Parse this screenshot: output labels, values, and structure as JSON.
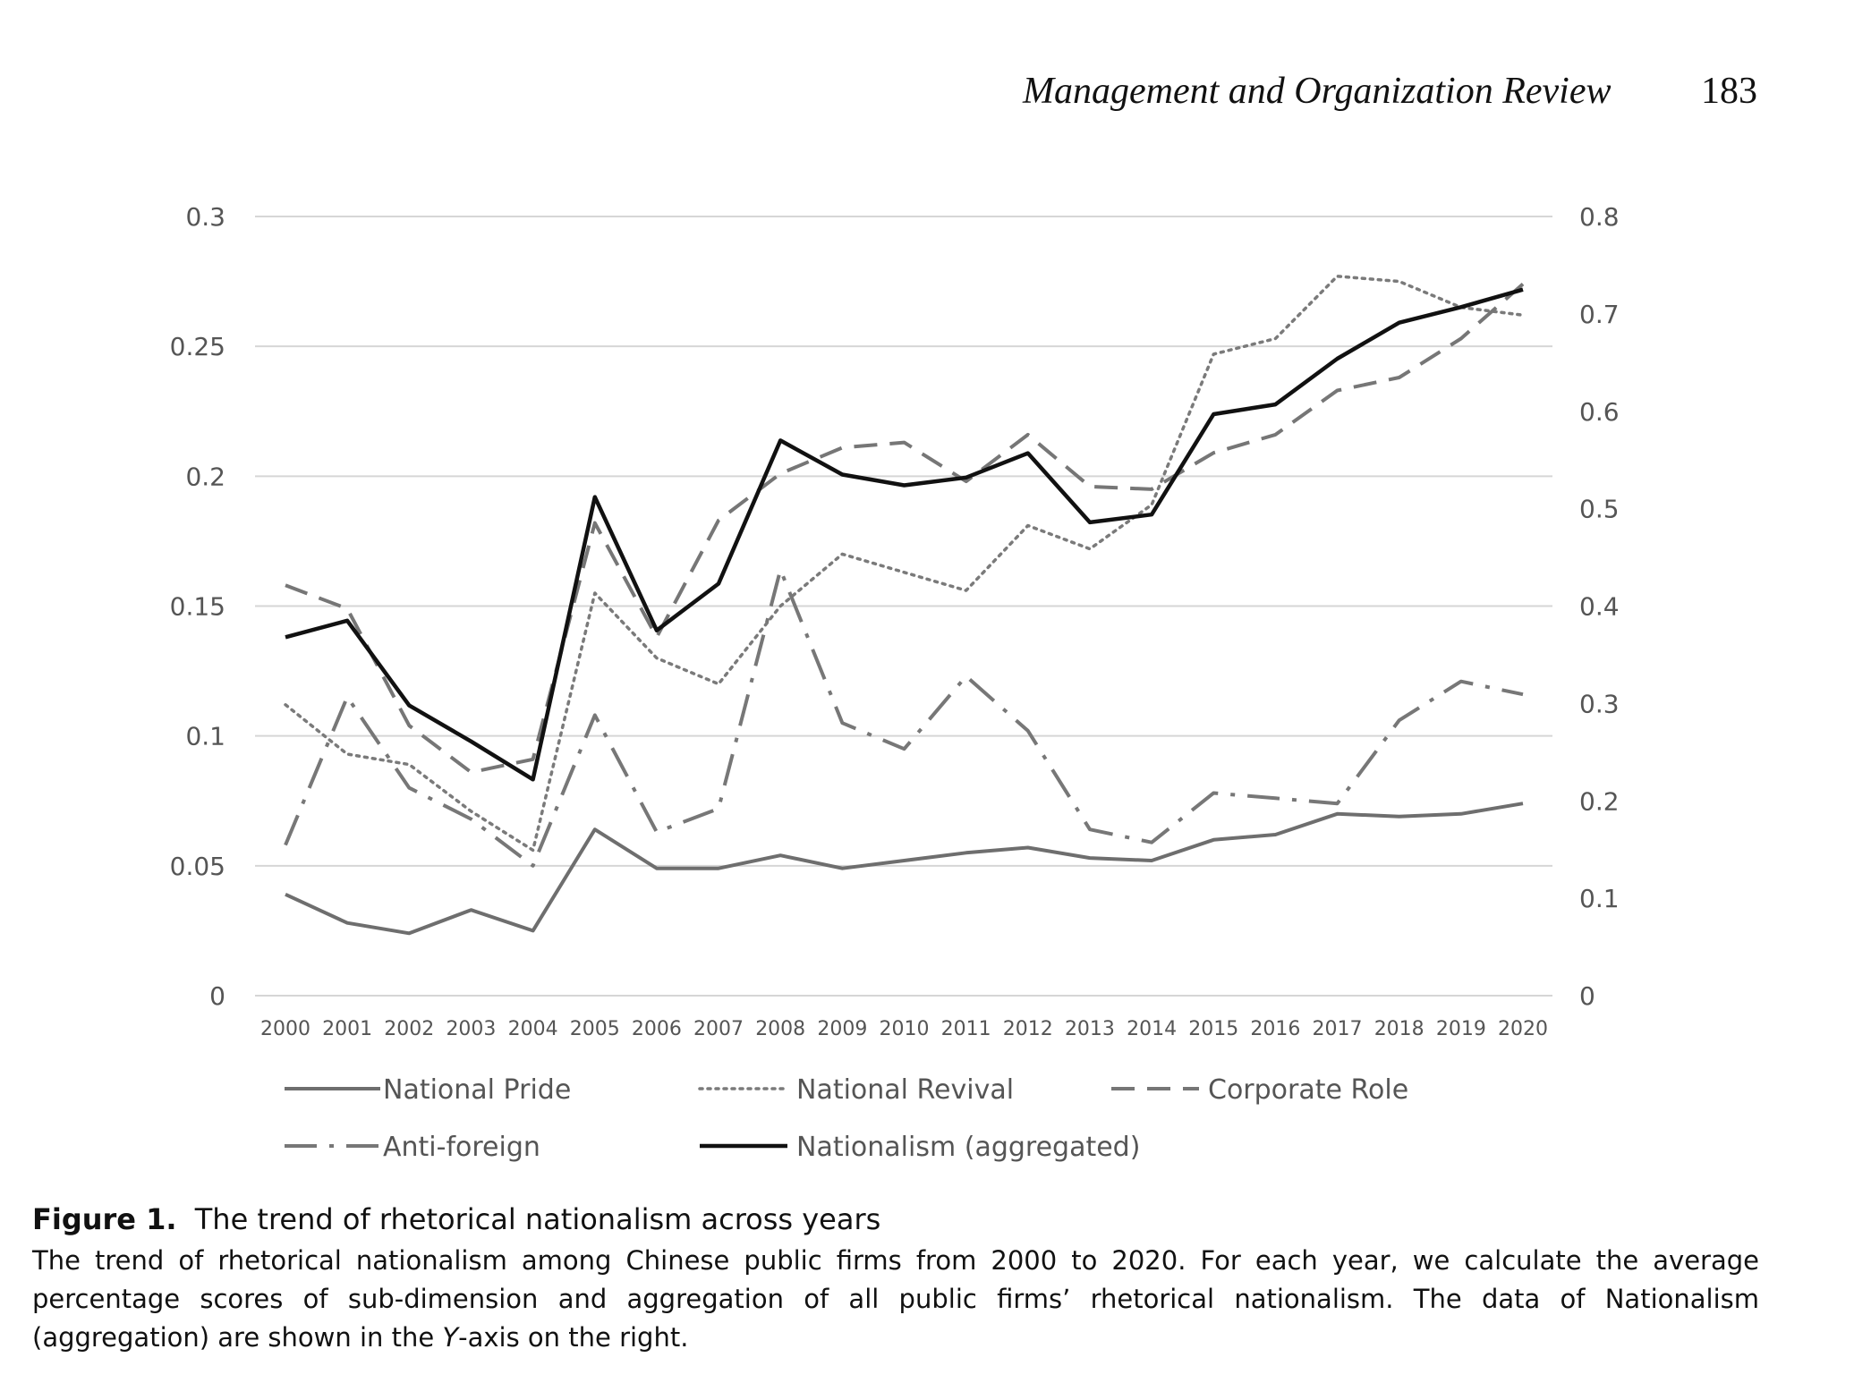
{
  "header": {
    "journal": "Management and Organization Review",
    "page_number": "183"
  },
  "chart_data": {
    "type": "line",
    "title": "",
    "xlabel": "",
    "ylabel": "",
    "x": [
      "2000",
      "2001",
      "2002",
      "2003",
      "2004",
      "2005",
      "2006",
      "2007",
      "2008",
      "2009",
      "2010",
      "2011",
      "2012",
      "2013",
      "2014",
      "2015",
      "2016",
      "2017",
      "2018",
      "2019",
      "2020"
    ],
    "y_left": {
      "lim": [
        0,
        0.3
      ],
      "ticks": [
        0,
        0.05,
        0.1,
        0.15,
        0.2,
        0.25,
        0.3
      ],
      "tick_labels": [
        "0",
        "0.05",
        "0.1",
        "0.15",
        "0.2",
        "0.25",
        "0.3"
      ]
    },
    "y_right": {
      "lim": [
        0,
        0.8
      ],
      "ticks": [
        0,
        0.1,
        0.2,
        0.3,
        0.4,
        0.5,
        0.6,
        0.7,
        0.8
      ],
      "tick_labels": [
        "0",
        "0.1",
        "0.2",
        "0.3",
        "0.4",
        "0.5",
        "0.6",
        "0.7",
        "0.8"
      ]
    },
    "grid": true,
    "legend_position": "bottom",
    "series": [
      {
        "name": "National Pride",
        "axis": "left",
        "style": "solid",
        "color": "#6e6e6e",
        "values": [
          0.039,
          0.028,
          0.024,
          0.033,
          0.025,
          0.064,
          0.049,
          0.049,
          0.054,
          0.049,
          0.052,
          0.055,
          0.057,
          0.053,
          0.052,
          0.06,
          0.062,
          0.07,
          0.069,
          0.07,
          0.074
        ]
      },
      {
        "name": "National Revival",
        "axis": "left",
        "style": "dotted",
        "color": "#7a7a7a",
        "values": [
          0.112,
          0.093,
          0.089,
          0.071,
          0.056,
          0.155,
          0.13,
          0.12,
          0.15,
          0.17,
          0.163,
          0.156,
          0.181,
          0.172,
          0.189,
          0.247,
          0.253,
          0.277,
          0.275,
          0.265,
          0.262
        ]
      },
      {
        "name": "Corporate Role",
        "axis": "left",
        "style": "dashed",
        "color": "#767676",
        "values": [
          0.158,
          0.149,
          0.104,
          0.086,
          0.091,
          0.182,
          0.138,
          0.183,
          0.201,
          0.211,
          0.213,
          0.198,
          0.216,
          0.196,
          0.195,
          0.209,
          0.216,
          0.233,
          0.238,
          0.253,
          0.274
        ]
      },
      {
        "name": "Anti-foreign",
        "axis": "left",
        "style": "dashdot",
        "color": "#777777",
        "values": [
          0.058,
          0.115,
          0.08,
          0.068,
          0.05,
          0.108,
          0.063,
          0.072,
          0.164,
          0.105,
          0.095,
          0.123,
          0.102,
          0.064,
          0.059,
          0.078,
          0.076,
          0.074,
          0.106,
          0.121,
          0.116
        ]
      },
      {
        "name": "Nationalism (aggregated)",
        "axis": "right",
        "style": "solid",
        "color": "#111111",
        "values": [
          0.368,
          0.385,
          0.298,
          0.261,
          0.222,
          0.512,
          0.375,
          0.423,
          0.57,
          0.535,
          0.524,
          0.532,
          0.557,
          0.486,
          0.494,
          0.597,
          0.607,
          0.654,
          0.691,
          0.707,
          0.725
        ]
      }
    ]
  },
  "caption": {
    "label": "Figure 1.",
    "title": "The trend of rhetorical nationalism across years",
    "text_before": "The trend of rhetorical nationalism among Chinese public firms from 2000 to 2020. For each year, we calculate the average percentage scores of sub-dimension and aggregation of all public firms’ rhetorical nationalism. The data of Nationalism (aggregation) are shown in the ",
    "text_axis": "Y",
    "text_after": "-axis on the right."
  }
}
